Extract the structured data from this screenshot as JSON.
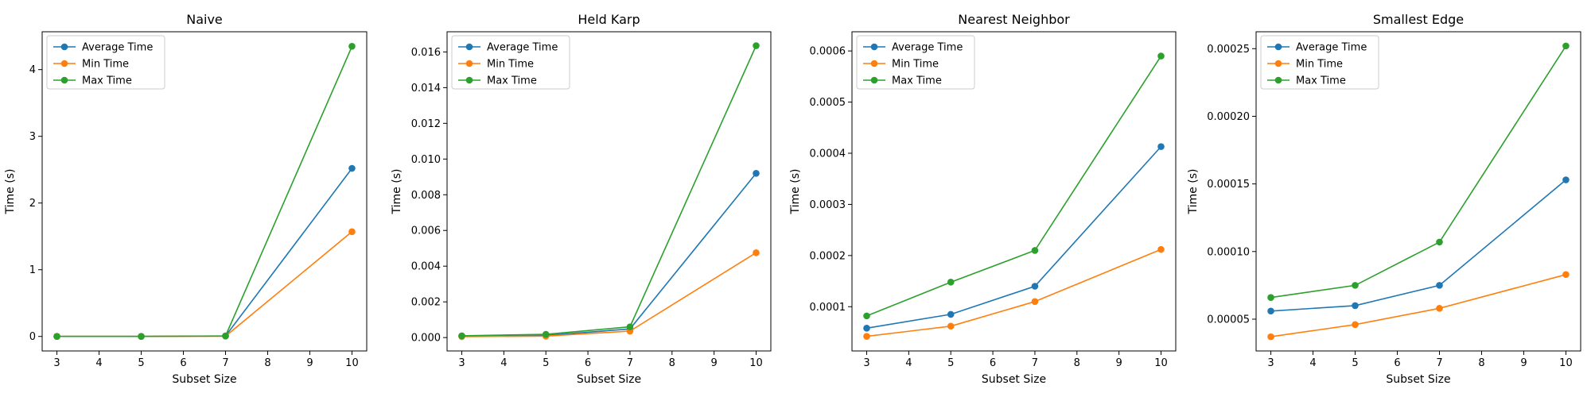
{
  "colors": {
    "average": "#1f77b4",
    "min": "#ff7f0e",
    "max": "#2ca02c"
  },
  "chart_data": [
    {
      "type": "line",
      "title": "Naive",
      "xlabel": "Subset Size",
      "ylabel": "Time (s)",
      "x": [
        3,
        5,
        7,
        10
      ],
      "xlim": [
        2.65,
        10.35
      ],
      "ylim": [
        -0.2175,
        4.5675
      ],
      "xticks": [
        "3",
        "4",
        "5",
        "6",
        "7",
        "8",
        "9",
        "10"
      ],
      "yticks": [
        {
          "v": 0,
          "label": "0"
        },
        {
          "v": 1,
          "label": "1"
        },
        {
          "v": 2,
          "label": "2"
        },
        {
          "v": 3,
          "label": "3"
        },
        {
          "v": 4,
          "label": "4"
        }
      ],
      "legend": "top-left",
      "series": [
        {
          "name": "Average Time",
          "values": [
            5e-05,
            0.0004,
            0.006,
            2.52
          ]
        },
        {
          "name": "Min Time",
          "values": [
            3e-05,
            0.0002,
            0.004,
            1.57
          ]
        },
        {
          "name": "Max Time",
          "values": [
            8e-05,
            0.0006,
            0.008,
            4.35
          ]
        }
      ]
    },
    {
      "type": "line",
      "title": "Held Karp",
      "xlabel": "Subset Size",
      "ylabel": "Time (s)",
      "x": [
        3,
        5,
        7,
        10
      ],
      "xlim": [
        2.65,
        10.35
      ],
      "ylim": [
        -0.00075,
        0.01713
      ],
      "xticks": [
        "3",
        "4",
        "5",
        "6",
        "7",
        "8",
        "9",
        "10"
      ],
      "yticks": [
        {
          "v": 0,
          "label": "0.000"
        },
        {
          "v": 0.002,
          "label": "0.002"
        },
        {
          "v": 0.004,
          "label": "0.004"
        },
        {
          "v": 0.006,
          "label": "0.006"
        },
        {
          "v": 0.008,
          "label": "0.008"
        },
        {
          "v": 0.01,
          "label": "0.010"
        },
        {
          "v": 0.012,
          "label": "0.012"
        },
        {
          "v": 0.014,
          "label": "0.014"
        },
        {
          "v": 0.016,
          "label": "0.016"
        }
      ],
      "legend": "top-left",
      "series": [
        {
          "name": "Average Time",
          "values": [
            8e-05,
            0.00012,
            0.00048,
            0.0092
          ]
        },
        {
          "name": "Min Time",
          "values": [
            5e-05,
            8e-05,
            0.00036,
            0.00475
          ]
        },
        {
          "name": "Max Time",
          "values": [
            0.0001,
            0.00018,
            0.0006,
            0.01635
          ]
        }
      ]
    },
    {
      "type": "line",
      "title": "Nearest Neighbor",
      "xlabel": "Subset Size",
      "ylabel": "Time (s)",
      "x": [
        3,
        5,
        7,
        10
      ],
      "xlim": [
        2.65,
        10.35
      ],
      "ylim": [
        1.35e-05,
        0.0006375
      ],
      "xticks": [
        "3",
        "4",
        "5",
        "6",
        "7",
        "8",
        "9",
        "10"
      ],
      "yticks": [
        {
          "v": 0.0001,
          "label": "0.0001"
        },
        {
          "v": 0.0002,
          "label": "0.0002"
        },
        {
          "v": 0.0003,
          "label": "0.0003"
        },
        {
          "v": 0.0004,
          "label": "0.0004"
        },
        {
          "v": 0.0005,
          "label": "0.0005"
        },
        {
          "v": 0.0006,
          "label": "0.0006"
        }
      ],
      "legend": "top-left",
      "series": [
        {
          "name": "Average Time",
          "values": [
            5.8e-05,
            8.5e-05,
            0.00014,
            0.000413
          ]
        },
        {
          "name": "Min Time",
          "values": [
            4.2e-05,
            6.2e-05,
            0.00011,
            0.000212
          ]
        },
        {
          "name": "Max Time",
          "values": [
            8.2e-05,
            0.000148,
            0.00021,
            0.00059
          ]
        }
      ]
    },
    {
      "type": "line",
      "title": "Smallest Edge",
      "xlabel": "Subset Size",
      "ylabel": "Time (s)",
      "x": [
        3,
        5,
        7,
        10
      ],
      "xlim": [
        2.65,
        10.35
      ],
      "ylim": [
        2.65e-05,
        0.0002625
      ],
      "xticks": [
        "3",
        "4",
        "5",
        "6",
        "7",
        "8",
        "9",
        "10"
      ],
      "yticks": [
        {
          "v": 5e-05,
          "label": "0.00005"
        },
        {
          "v": 0.0001,
          "label": "0.00010"
        },
        {
          "v": 0.00015,
          "label": "0.00015"
        },
        {
          "v": 0.0002,
          "label": "0.00020"
        },
        {
          "v": 0.00025,
          "label": "0.00025"
        }
      ],
      "legend": "top-left",
      "series": [
        {
          "name": "Average Time",
          "values": [
            5.6e-05,
            6e-05,
            7.5e-05,
            0.000153
          ]
        },
        {
          "name": "Min Time",
          "values": [
            3.7e-05,
            4.6e-05,
            5.8e-05,
            8.3e-05
          ]
        },
        {
          "name": "Max Time",
          "values": [
            6.6e-05,
            7.5e-05,
            0.000107,
            0.000252
          ]
        }
      ]
    }
  ]
}
